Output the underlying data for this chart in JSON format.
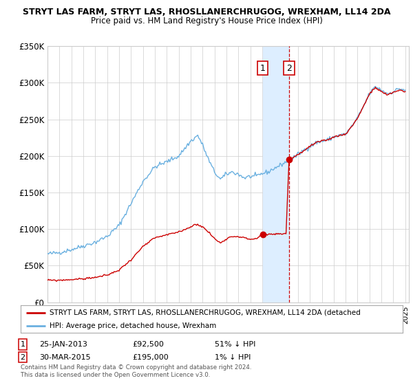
{
  "title": "STRYT LAS FARM, STRYT LAS, RHOSLLANERCHRUGOG, WREXHAM, LL14 2DA",
  "subtitle": "Price paid vs. HM Land Registry's House Price Index (HPI)",
  "ylim": [
    0,
    350000
  ],
  "yticks": [
    0,
    50000,
    100000,
    150000,
    200000,
    250000,
    300000,
    350000
  ],
  "ytick_labels": [
    "£0",
    "£50K",
    "£100K",
    "£150K",
    "£200K",
    "£250K",
    "£300K",
    "£350K"
  ],
  "xlim_start": 1995.0,
  "xlim_end": 2025.3,
  "sale1_date": 2013.05,
  "sale1_price": 92500,
  "sale1_label": "1",
  "sale2_date": 2015.25,
  "sale2_price": 195000,
  "sale2_label": "2",
  "legend_line1": "STRYT LAS FARM, STRYT LAS, RHOSLLANERCHRUGOG, WREXHAM, LL14 2DA (detached",
  "legend_line2": "HPI: Average price, detached house, Wrexham",
  "footnote1": "Contains HM Land Registry data © Crown copyright and database right 2024.",
  "footnote2": "This data is licensed under the Open Government Licence v3.0.",
  "property_color": "#cc0000",
  "hpi_color": "#6ab0e0",
  "background_color": "#ffffff",
  "grid_color": "#cccccc",
  "shade_color": "#ddeeff",
  "label_box_color": "#cc0000",
  "hpi_key_points": {
    "1995.0": 66000,
    "1996.0": 68000,
    "1997.0": 72000,
    "1998.0": 77000,
    "1999.0": 82000,
    "2000.0": 90000,
    "2001.0": 105000,
    "2002.0": 135000,
    "2003.0": 165000,
    "2004.0": 185000,
    "2005.0": 192000,
    "2006.0": 200000,
    "2007.0": 220000,
    "2007.6": 228000,
    "2008.0": 215000,
    "2008.5": 195000,
    "2009.0": 178000,
    "2009.5": 168000,
    "2010.0": 175000,
    "2010.5": 178000,
    "2011.0": 175000,
    "2011.5": 170000,
    "2012.0": 172000,
    "2012.5": 172000,
    "2013.0": 176000,
    "2013.5": 178000,
    "2014.0": 183000,
    "2014.5": 187000,
    "2015.0": 192000,
    "2015.5": 196000,
    "2016.0": 202000,
    "2016.5": 208000,
    "2017.0": 213000,
    "2017.5": 218000,
    "2018.0": 220000,
    "2018.5": 222000,
    "2019.0": 226000,
    "2019.5": 228000,
    "2020.0": 230000,
    "2020.5": 240000,
    "2021.0": 252000,
    "2021.5": 268000,
    "2022.0": 285000,
    "2022.5": 295000,
    "2023.0": 290000,
    "2023.5": 285000,
    "2024.0": 288000,
    "2024.5": 292000,
    "2025.0": 290000
  },
  "prop_key_points": {
    "1995.0": 30000,
    "1996.0": 30000,
    "1997.0": 31000,
    "1998.0": 32000,
    "1999.0": 34000,
    "2000.0": 37000,
    "2001.0": 44000,
    "2002.0": 58000,
    "2003.0": 76000,
    "2004.0": 88000,
    "2005.0": 92000,
    "2006.0": 96000,
    "2007.0": 103000,
    "2007.5": 107000,
    "2008.0": 103000,
    "2008.5": 96000,
    "2009.0": 87000,
    "2009.5": 81000,
    "2010.0": 87000,
    "2010.5": 90000,
    "2011.0": 90000,
    "2011.5": 88000,
    "2012.0": 86000,
    "2012.5": 87000,
    "2013.0": 92500,
    "2013.1": 92500,
    "2014.0": 93000,
    "2014.5": 93500,
    "2015.0": 94000,
    "2015.25": 195000,
    "2015.3": 195000,
    "2016.0": 202000,
    "2016.5": 207000,
    "2017.0": 213000,
    "2017.5": 218000,
    "2018.0": 220000,
    "2018.5": 222000,
    "2019.0": 226000,
    "2019.5": 228000,
    "2020.0": 230000,
    "2020.5": 240000,
    "2021.0": 252000,
    "2021.5": 268000,
    "2022.0": 285000,
    "2022.5": 293000,
    "2023.0": 288000,
    "2023.5": 283000,
    "2024.0": 287000,
    "2024.5": 290000,
    "2025.0": 288000
  }
}
